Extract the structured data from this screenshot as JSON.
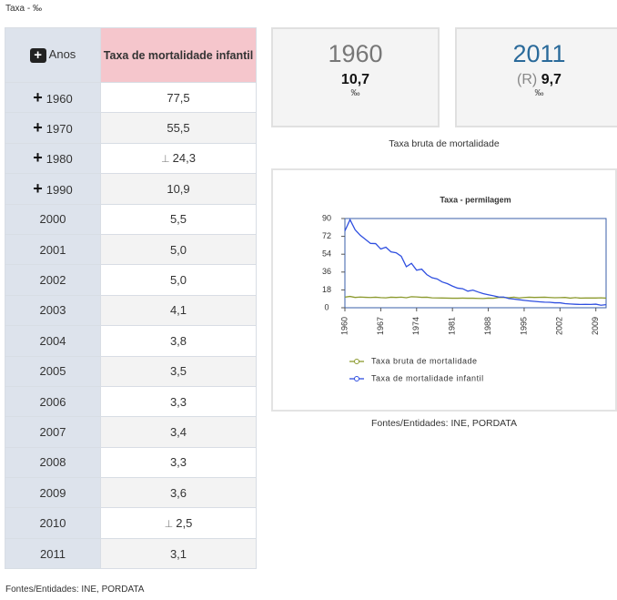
{
  "header": {
    "title": "Taxa - ‰"
  },
  "table": {
    "columns": [
      "Anos",
      "Taxa de mortalidade infantil"
    ],
    "rows": [
      {
        "year": "1960",
        "value": "77,5",
        "expandable": true
      },
      {
        "year": "1970",
        "value": "55,5",
        "expandable": true
      },
      {
        "year": "1980",
        "value": "24,3",
        "expandable": true,
        "flag": "⊥"
      },
      {
        "year": "1990",
        "value": "10,9",
        "expandable": true
      },
      {
        "year": "2000",
        "value": "5,5"
      },
      {
        "year": "2001",
        "value": "5,0"
      },
      {
        "year": "2002",
        "value": "5,0"
      },
      {
        "year": "2003",
        "value": "4,1"
      },
      {
        "year": "2004",
        "value": "3,8"
      },
      {
        "year": "2005",
        "value": "3,5"
      },
      {
        "year": "2006",
        "value": "3,3"
      },
      {
        "year": "2007",
        "value": "3,4"
      },
      {
        "year": "2008",
        "value": "3,3"
      },
      {
        "year": "2009",
        "value": "3,6"
      },
      {
        "year": "2010",
        "value": "2,5",
        "flag": "⊥"
      },
      {
        "year": "2011",
        "value": "3,1"
      }
    ],
    "source": "Fontes/Entidades: INE, PORDATA"
  },
  "cards": [
    {
      "year": "1960",
      "value": "10,7",
      "unit": "‰"
    },
    {
      "year": "2011",
      "prefix": "(R)",
      "value": "9,7",
      "unit": "‰"
    }
  ],
  "cards_caption": "Taxa bruta de mortalidade",
  "chart_data": {
    "type": "line",
    "title": "Taxa - permilagem",
    "x": [
      1960,
      1961,
      1962,
      1963,
      1964,
      1965,
      1966,
      1967,
      1968,
      1969,
      1970,
      1971,
      1972,
      1973,
      1974,
      1975,
      1976,
      1977,
      1978,
      1979,
      1980,
      1981,
      1982,
      1983,
      1984,
      1985,
      1986,
      1987,
      1988,
      1989,
      1990,
      1991,
      1992,
      1993,
      1994,
      1995,
      1996,
      1997,
      1998,
      1999,
      2000,
      2001,
      2002,
      2003,
      2004,
      2005,
      2006,
      2007,
      2008,
      2009,
      2010,
      2011
    ],
    "series": [
      {
        "name": "Taxa bruta de mortalidade",
        "color": "#8c9a2e",
        "values": [
          10.7,
          11.4,
          10.4,
          10.8,
          10.5,
          10.3,
          10.6,
          10.2,
          10.0,
          10.6,
          10.4,
          10.7,
          10.1,
          11.1,
          10.9,
          10.5,
          10.6,
          10.0,
          9.9,
          9.8,
          9.7,
          9.6,
          9.6,
          9.7,
          9.6,
          9.6,
          9.4,
          9.3,
          9.7,
          9.5,
          10.4,
          10.4,
          10.1,
          10.6,
          9.9,
          10.3,
          10.6,
          10.4,
          10.5,
          10.6,
          10.3,
          10.1,
          10.2,
          10.4,
          9.7,
          10.2,
          9.7,
          9.8,
          9.8,
          9.8,
          10.0,
          9.7
        ]
      },
      {
        "name": "Taxa de mortalidade infantil",
        "color": "#2f4fe0",
        "values": [
          77.5,
          88.8,
          78.6,
          73.1,
          69.0,
          64.9,
          64.7,
          59.2,
          61.1,
          56.4,
          55.5,
          51.9,
          41.4,
          44.8,
          37.9,
          38.9,
          33.4,
          30.3,
          29.1,
          26.0,
          24.3,
          21.8,
          19.8,
          19.2,
          16.7,
          17.8,
          15.9,
          14.2,
          13.1,
          12.1,
          10.9,
          10.8,
          9.3,
          8.7,
          8.1,
          7.5,
          6.9,
          6.4,
          6.0,
          5.6,
          5.5,
          5.0,
          5.0,
          4.1,
          3.8,
          3.5,
          3.3,
          3.4,
          3.3,
          3.6,
          2.5,
          3.1
        ]
      }
    ],
    "xlim": [
      1960,
      2011
    ],
    "xticks": [
      1960,
      1967,
      1974,
      1981,
      1988,
      1995,
      2002,
      2009
    ],
    "ylim": [
      0,
      90
    ],
    "yticks": [
      0,
      18,
      36,
      54,
      72,
      90
    ],
    "legend": "bottom",
    "source": "Fontes/Entidades: INE, PORDATA"
  }
}
